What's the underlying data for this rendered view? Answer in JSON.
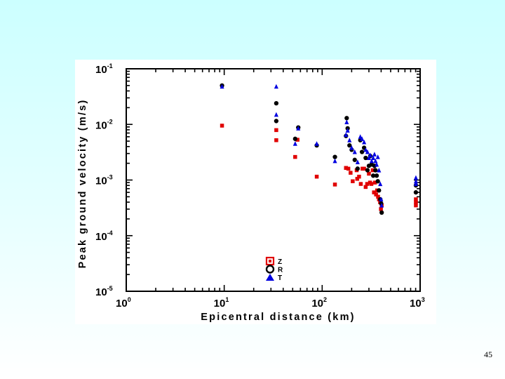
{
  "slide": {
    "page_number": "45"
  },
  "chart_data": {
    "type": "scatter",
    "xlabel": "Epicentral distance (km)",
    "ylabel": "Peak ground velocity (m/s)",
    "x_scale": "log",
    "y_scale": "log",
    "xlim": [
      1,
      1000
    ],
    "ylim": [
      1e-05,
      0.1
    ],
    "x_ticks": [
      {
        "base": "10",
        "exp": "0",
        "value": 1
      },
      {
        "base": "10",
        "exp": "1",
        "value": 10
      },
      {
        "base": "10",
        "exp": "2",
        "value": 100
      },
      {
        "base": "10",
        "exp": "3",
        "value": 1000
      }
    ],
    "y_ticks": [
      {
        "base": "10",
        "exp": "-5",
        "value": 1e-05
      },
      {
        "base": "10",
        "exp": "-4",
        "value": 0.0001
      },
      {
        "base": "10",
        "exp": "-3",
        "value": 0.001
      },
      {
        "base": "10",
        "exp": "-2",
        "value": 0.01
      },
      {
        "base": "10",
        "exp": "-1",
        "value": 0.1
      }
    ],
    "grid": false,
    "legend": {
      "position": "lower-center"
    },
    "series": [
      {
        "name": "Z",
        "color": "#e00000",
        "marker": "square",
        "points": [
          [
            9.5,
            0.0095
          ],
          [
            34,
            0.0079
          ],
          [
            34,
            0.0052
          ],
          [
            53,
            0.0026
          ],
          [
            56,
            0.0053
          ],
          [
            88,
            0.00115
          ],
          [
            135,
            0.00083
          ],
          [
            175,
            0.00165
          ],
          [
            185,
            0.0016
          ],
          [
            195,
            0.00135
          ],
          [
            205,
            0.00095
          ],
          [
            225,
            0.0015
          ],
          [
            228,
            0.00105
          ],
          [
            238,
            0.00115
          ],
          [
            248,
            0.00085
          ],
          [
            258,
            0.0016
          ],
          [
            268,
            0.0016
          ],
          [
            278,
            0.00075
          ],
          [
            288,
            0.00085
          ],
          [
            300,
            0.0013
          ],
          [
            308,
            0.0009
          ],
          [
            318,
            0.00085
          ],
          [
            328,
            0.0015
          ],
          [
            338,
            0.0006
          ],
          [
            346,
            0.0009
          ],
          [
            355,
            0.00055
          ],
          [
            364,
            0.00065
          ],
          [
            372,
            0.0005
          ],
          [
            380,
            0.00045
          ],
          [
            390,
            0.0004
          ],
          [
            398,
            0.0003
          ],
          [
            405,
            0.00035
          ],
          [
            905,
            0.00045
          ],
          [
            905,
            0.0004
          ],
          [
            905,
            0.00035
          ]
        ]
      },
      {
        "name": "R",
        "color": "#000000",
        "marker": "circle",
        "points": [
          [
            9.5,
            0.05
          ],
          [
            34,
            0.024
          ],
          [
            34,
            0.0115
          ],
          [
            57,
            0.0088
          ],
          [
            53,
            0.0055
          ],
          [
            88,
            0.0042
          ],
          [
            135,
            0.0026
          ],
          [
            178,
            0.013
          ],
          [
            182,
            0.0085
          ],
          [
            175,
            0.0062
          ],
          [
            190,
            0.0042
          ],
          [
            200,
            0.0035
          ],
          [
            215,
            0.0023
          ],
          [
            230,
            0.0016
          ],
          [
            245,
            0.0052
          ],
          [
            255,
            0.0032
          ],
          [
            268,
            0.0038
          ],
          [
            278,
            0.0025
          ],
          [
            290,
            0.0015
          ],
          [
            300,
            0.0018
          ],
          [
            310,
            0.0027
          ],
          [
            320,
            0.0019
          ],
          [
            332,
            0.0012
          ],
          [
            342,
            0.0018
          ],
          [
            350,
            0.0015
          ],
          [
            360,
            0.0012
          ],
          [
            370,
            0.00095
          ],
          [
            380,
            0.00065
          ],
          [
            392,
            0.00045
          ],
          [
            400,
            0.00038
          ],
          [
            405,
            0.00026
          ],
          [
            905,
            0.0008
          ],
          [
            905,
            0.0006
          ]
        ]
      },
      {
        "name": "T",
        "color": "#0000e0",
        "marker": "triangle",
        "points": [
          [
            9.5,
            0.048
          ],
          [
            34,
            0.048
          ],
          [
            34,
            0.015
          ],
          [
            57,
            0.0085
          ],
          [
            53,
            0.0045
          ],
          [
            88,
            0.0045
          ],
          [
            135,
            0.0022
          ],
          [
            178,
            0.011
          ],
          [
            182,
            0.0078
          ],
          [
            175,
            0.0065
          ],
          [
            190,
            0.0052
          ],
          [
            200,
            0.0038
          ],
          [
            215,
            0.0032
          ],
          [
            230,
            0.0021
          ],
          [
            245,
            0.006
          ],
          [
            255,
            0.0055
          ],
          [
            268,
            0.0048
          ],
          [
            278,
            0.0035
          ],
          [
            290,
            0.0032
          ],
          [
            300,
            0.0025
          ],
          [
            310,
            0.0028
          ],
          [
            320,
            0.0022
          ],
          [
            332,
            0.0025
          ],
          [
            342,
            0.0029
          ],
          [
            350,
            0.0022
          ],
          [
            360,
            0.0019
          ],
          [
            370,
            0.0026
          ],
          [
            380,
            0.0015
          ],
          [
            392,
            0.00085
          ],
          [
            400,
            0.00045
          ],
          [
            405,
            0.00035
          ],
          [
            905,
            0.0011
          ],
          [
            905,
            0.00095
          ],
          [
            905,
            0.00085
          ]
        ]
      }
    ]
  }
}
